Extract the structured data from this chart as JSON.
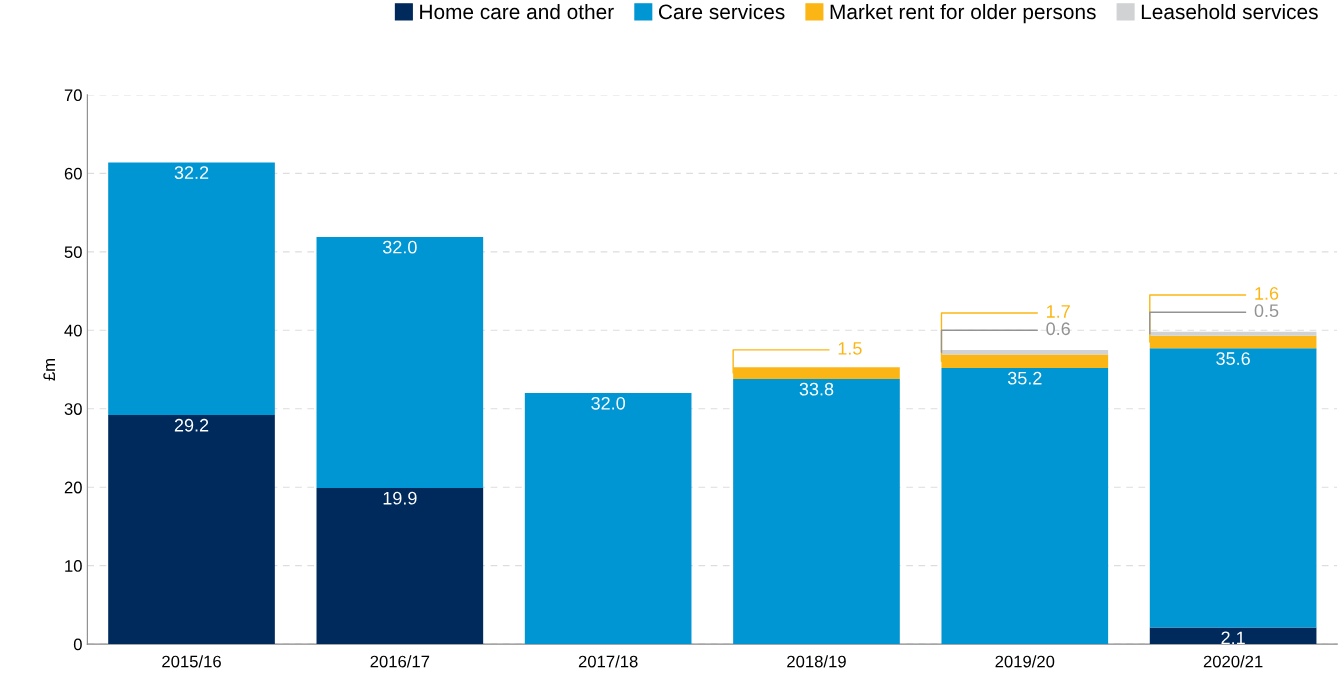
{
  "chart_data": {
    "type": "bar",
    "stacked": true,
    "ylabel": "£m",
    "categories": [
      "2015/16",
      "2016/17",
      "2017/18",
      "2018/19",
      "2019/20",
      "2020/21"
    ],
    "series": [
      {
        "name": "Home care and other",
        "color": "#002a5c",
        "values": [
          29.2,
          19.9,
          null,
          null,
          null,
          2.1
        ],
        "value_labels": [
          "29.2",
          "19.9",
          null,
          null,
          null,
          "2.1"
        ]
      },
      {
        "name": "Care services",
        "color": "#0095d3",
        "values": [
          32.2,
          32.0,
          32.0,
          33.8,
          35.2,
          35.6
        ],
        "value_labels": [
          "32.2",
          "32.0",
          "32.0",
          "33.8",
          "35.2",
          "35.6"
        ]
      },
      {
        "name": "Market rent for older persons",
        "color": "#fbb615",
        "values": [
          null,
          null,
          null,
          1.5,
          1.7,
          1.6
        ],
        "value_labels": [
          null,
          null,
          null,
          "1.5",
          "1.7",
          "1.6"
        ]
      },
      {
        "name": "Leasehold services",
        "color": "#d0d2d3",
        "values": [
          null,
          null,
          null,
          null,
          0.6,
          0.5
        ],
        "value_labels": [
          null,
          null,
          null,
          null,
          "0.6",
          "0.5"
        ]
      }
    ],
    "ylim": [
      0,
      70
    ],
    "yticks": [
      0,
      10,
      20,
      30,
      40,
      50,
      60,
      70
    ],
    "grid": "y",
    "legend": "top right"
  }
}
